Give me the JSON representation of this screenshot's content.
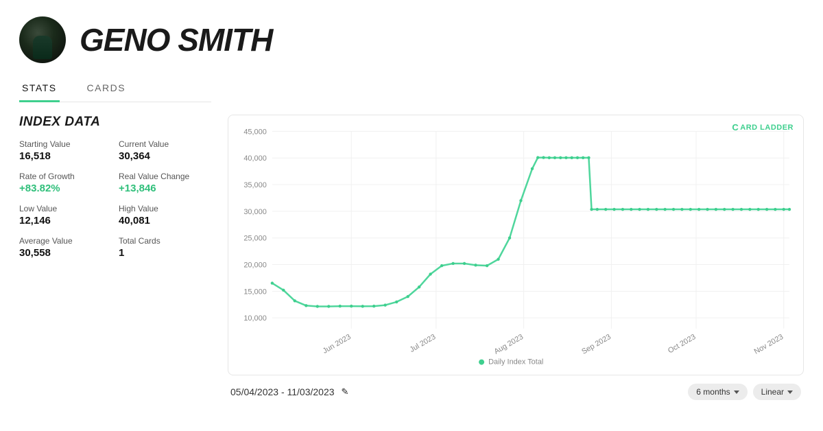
{
  "header": {
    "player_name": "GENO SMITH"
  },
  "tabs": {
    "items": [
      {
        "label": "STATS",
        "active": true
      },
      {
        "label": "CARDS",
        "active": false
      }
    ]
  },
  "index": {
    "title": "INDEX DATA",
    "stats": [
      {
        "label": "Starting Value",
        "value": "16,518",
        "positive": false
      },
      {
        "label": "Current Value",
        "value": "30,364",
        "positive": false
      },
      {
        "label": "Rate of Growth",
        "value": "+83.82%",
        "positive": true
      },
      {
        "label": "Real Value Change",
        "value": "+13,846",
        "positive": true
      },
      {
        "label": "Low Value",
        "value": "12,146",
        "positive": false
      },
      {
        "label": "High Value",
        "value": "40,081",
        "positive": false
      },
      {
        "label": "Average Value",
        "value": "30,558",
        "positive": false
      },
      {
        "label": "Total Cards",
        "value": "1",
        "positive": false
      }
    ]
  },
  "chart": {
    "type": "line",
    "watermark": "CARD LADDER",
    "legend_label": "Daily Index Total",
    "line_color": "#4fd69c",
    "marker_color": "#3ecf8e",
    "grid_color": "#f0f0f0",
    "axis_color": "#888888",
    "background": "#ffffff",
    "line_width": 2.5,
    "marker_radius": 2.2,
    "ylim": [
      8000,
      45000
    ],
    "yticks": [
      10000,
      15000,
      20000,
      25000,
      30000,
      35000,
      40000,
      45000
    ],
    "ytick_labels": [
      "10,000",
      "15,000",
      "20,000",
      "25,000",
      "30,000",
      "35,000",
      "40,000",
      "45,000"
    ],
    "x_range_days": 183,
    "xticks": [
      {
        "day": 28,
        "label": "Jun 2023"
      },
      {
        "day": 58,
        "label": "Jul 2023"
      },
      {
        "day": 89,
        "label": "Aug 2023"
      },
      {
        "day": 120,
        "label": "Sep 2023"
      },
      {
        "day": 150,
        "label": "Oct 2023"
      },
      {
        "day": 181,
        "label": "Nov 2023"
      }
    ],
    "series": [
      {
        "day": 0,
        "value": 16518
      },
      {
        "day": 4,
        "value": 15200
      },
      {
        "day": 8,
        "value": 13200
      },
      {
        "day": 12,
        "value": 12300
      },
      {
        "day": 16,
        "value": 12146
      },
      {
        "day": 20,
        "value": 12150
      },
      {
        "day": 24,
        "value": 12200
      },
      {
        "day": 28,
        "value": 12200
      },
      {
        "day": 32,
        "value": 12180
      },
      {
        "day": 36,
        "value": 12200
      },
      {
        "day": 40,
        "value": 12400
      },
      {
        "day": 44,
        "value": 13000
      },
      {
        "day": 48,
        "value": 14000
      },
      {
        "day": 52,
        "value": 15800
      },
      {
        "day": 56,
        "value": 18200
      },
      {
        "day": 60,
        "value": 19800
      },
      {
        "day": 64,
        "value": 20200
      },
      {
        "day": 68,
        "value": 20200
      },
      {
        "day": 72,
        "value": 19900
      },
      {
        "day": 76,
        "value": 19800
      },
      {
        "day": 80,
        "value": 21000
      },
      {
        "day": 84,
        "value": 25000
      },
      {
        "day": 88,
        "value": 32000
      },
      {
        "day": 92,
        "value": 38000
      },
      {
        "day": 94,
        "value": 40081
      },
      {
        "day": 96,
        "value": 40081
      },
      {
        "day": 98,
        "value": 40050
      },
      {
        "day": 100,
        "value": 40050
      },
      {
        "day": 102,
        "value": 40050
      },
      {
        "day": 104,
        "value": 40050
      },
      {
        "day": 106,
        "value": 40050
      },
      {
        "day": 108,
        "value": 40050
      },
      {
        "day": 110,
        "value": 40050
      },
      {
        "day": 112,
        "value": 40050
      },
      {
        "day": 113,
        "value": 30364
      },
      {
        "day": 115,
        "value": 30364
      },
      {
        "day": 118,
        "value": 30364
      },
      {
        "day": 121,
        "value": 30364
      },
      {
        "day": 124,
        "value": 30364
      },
      {
        "day": 127,
        "value": 30364
      },
      {
        "day": 130,
        "value": 30364
      },
      {
        "day": 133,
        "value": 30364
      },
      {
        "day": 136,
        "value": 30364
      },
      {
        "day": 139,
        "value": 30364
      },
      {
        "day": 142,
        "value": 30364
      },
      {
        "day": 145,
        "value": 30364
      },
      {
        "day": 148,
        "value": 30364
      },
      {
        "day": 151,
        "value": 30364
      },
      {
        "day": 154,
        "value": 30364
      },
      {
        "day": 157,
        "value": 30364
      },
      {
        "day": 160,
        "value": 30364
      },
      {
        "day": 163,
        "value": 30364
      },
      {
        "day": 166,
        "value": 30364
      },
      {
        "day": 169,
        "value": 30364
      },
      {
        "day": 172,
        "value": 30364
      },
      {
        "day": 175,
        "value": 30364
      },
      {
        "day": 178,
        "value": 30364
      },
      {
        "day": 181,
        "value": 30364
      },
      {
        "day": 183,
        "value": 30364
      }
    ]
  },
  "footer": {
    "date_range": "05/04/2023 - 11/03/2023",
    "period_selector": "6 months",
    "scale_selector": "Linear"
  }
}
